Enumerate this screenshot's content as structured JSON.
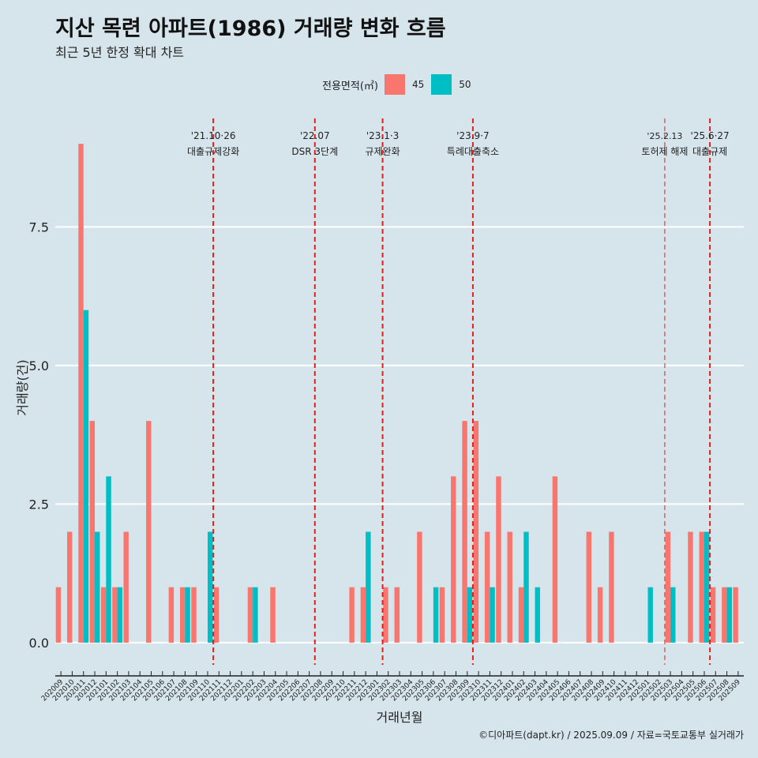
{
  "header": {
    "title": "지산 목련 아파트(1986) 거래량 변화 흐름",
    "subtitle": "최근 5년 한정 확대 차트"
  },
  "legend": {
    "title": "전용면적(㎡)",
    "items": [
      {
        "label": "45",
        "color": "#f8766d"
      },
      {
        "label": "50",
        "color": "#00bfc4"
      }
    ]
  },
  "caption": "©디아파트(dapt.kr) / 2025.09.09 / 자료=국토교통부 실거래가",
  "chart_data": {
    "type": "bar",
    "xlabel": "거래년월",
    "ylabel": "거래량(건)",
    "ylim": [
      -0.4,
      9.6
    ],
    "yticks": [
      0.0,
      2.5,
      5.0,
      7.5
    ],
    "ytick_labels": [
      "0.0",
      "2.5",
      "5.0",
      "7.5"
    ],
    "categories": [
      "202009",
      "202010",
      "202011",
      "202012",
      "202101",
      "202102",
      "202103",
      "202104",
      "202105",
      "202106",
      "202107",
      "202108",
      "202109",
      "202110",
      "202111",
      "202112",
      "202201",
      "202202",
      "202203",
      "202204",
      "202205",
      "202206",
      "202207",
      "202208",
      "202209",
      "202210",
      "202211",
      "202212",
      "202301",
      "202302",
      "202303",
      "202304",
      "202305",
      "202306",
      "202307",
      "202308",
      "202309",
      "202310",
      "202311",
      "202312",
      "202401",
      "202402",
      "202403",
      "202404",
      "202405",
      "202406",
      "202407",
      "202408",
      "202409",
      "202410",
      "202411",
      "202412",
      "202501",
      "202502",
      "202503",
      "202504",
      "202505",
      "202506",
      "202507",
      "202508",
      "202509"
    ],
    "series": [
      {
        "name": "45",
        "color": "#f8766d",
        "values": [
          1,
          2,
          9,
          4,
          1,
          1,
          2,
          0,
          4,
          0,
          1,
          1,
          1,
          0,
          1,
          0,
          0,
          1,
          0,
          1,
          0,
          0,
          0,
          0,
          0,
          0,
          1,
          1,
          0,
          1,
          1,
          0,
          2,
          0,
          1,
          3,
          4,
          4,
          2,
          3,
          2,
          1,
          0,
          0,
          3,
          0,
          0,
          2,
          1,
          2,
          0,
          0,
          0,
          0,
          2,
          0,
          2,
          2,
          1,
          1,
          1
        ]
      },
      {
        "name": "50",
        "color": "#00bfc4",
        "values": [
          0,
          0,
          6,
          2,
          3,
          1,
          0,
          0,
          0,
          0,
          0,
          1,
          0,
          2,
          0,
          0,
          0,
          1,
          0,
          0,
          0,
          0,
          0,
          0,
          0,
          0,
          0,
          2,
          0,
          0,
          0,
          0,
          0,
          1,
          0,
          0,
          1,
          0,
          1,
          0,
          0,
          2,
          1,
          0,
          0,
          0,
          0,
          0,
          0,
          0,
          0,
          0,
          1,
          0,
          1,
          0,
          0,
          2,
          0,
          1,
          0
        ]
      }
    ],
    "events": [
      {
        "date_label": "'21.10·26",
        "desc": "대출규제강화",
        "after_category": "202110",
        "style": "bold"
      },
      {
        "date_label": "'22.07",
        "desc": "DSR 3단계",
        "after_category": "202207",
        "style": "bold"
      },
      {
        "date_label": "'23.1·3",
        "desc": "규제완화",
        "after_category": "202301",
        "style": "bold"
      },
      {
        "date_label": "'23.9·7",
        "desc": "특례대출축소",
        "after_category": "202309",
        "style": "bold"
      },
      {
        "date_label": "'25.2.13",
        "desc": "토허제 해제",
        "after_category": "202502",
        "style": "thin"
      },
      {
        "date_label": "'25.6·27",
        "desc": "대출규제",
        "after_category": "202506",
        "style": "bold"
      }
    ],
    "grid": true,
    "legend_position": "top"
  }
}
